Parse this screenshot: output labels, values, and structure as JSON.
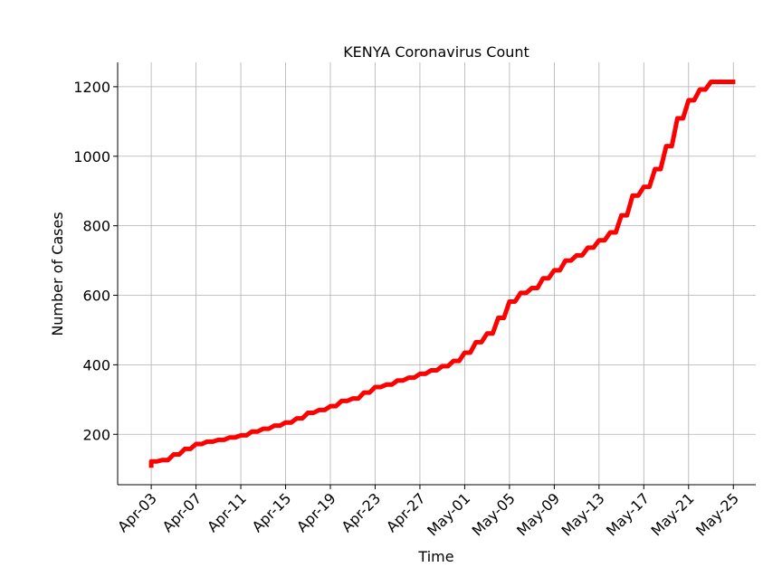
{
  "chart_data": {
    "type": "line",
    "title": "KENYA Coronavirus Count",
    "xlabel": "Time",
    "ylabel": "Number of Cases",
    "grid": true,
    "step": true,
    "ylim": [
      55,
      1270
    ],
    "xlim": [
      "2020-03-31",
      "2020-05-27"
    ],
    "x_tick_labels": [
      "Apr-03",
      "Apr-07",
      "Apr-11",
      "Apr-15",
      "Apr-19",
      "Apr-23",
      "Apr-27",
      "May-01",
      "May-05",
      "May-09",
      "May-13",
      "May-17",
      "May-21",
      "May-25"
    ],
    "x_tick_dates": [
      "2020-04-03",
      "2020-04-07",
      "2020-04-11",
      "2020-04-15",
      "2020-04-19",
      "2020-04-23",
      "2020-04-27",
      "2020-05-01",
      "2020-05-05",
      "2020-05-09",
      "2020-05-13",
      "2020-05-17",
      "2020-05-21",
      "2020-05-25"
    ],
    "y_ticks": [
      200,
      400,
      600,
      800,
      1000,
      1200
    ],
    "series": [
      {
        "color": "#ff0000",
        "x": [
          "2020-04-03",
          "2020-04-04",
          "2020-04-05",
          "2020-04-06",
          "2020-04-07",
          "2020-04-08",
          "2020-04-09",
          "2020-04-10",
          "2020-04-11",
          "2020-04-12",
          "2020-04-13",
          "2020-04-14",
          "2020-04-15",
          "2020-04-16",
          "2020-04-17",
          "2020-04-18",
          "2020-04-19",
          "2020-04-20",
          "2020-04-21",
          "2020-04-22",
          "2020-04-23",
          "2020-04-24",
          "2020-04-25",
          "2020-04-26",
          "2020-04-27",
          "2020-04-28",
          "2020-04-29",
          "2020-04-30",
          "2020-05-01",
          "2020-05-02",
          "2020-05-03",
          "2020-05-04",
          "2020-05-05",
          "2020-05-06",
          "2020-05-07",
          "2020-05-08",
          "2020-05-09",
          "2020-05-10",
          "2020-05-11",
          "2020-05-12",
          "2020-05-13",
          "2020-05-14",
          "2020-05-15",
          "2020-05-16",
          "2020-05-17",
          "2020-05-18",
          "2020-05-19",
          "2020-05-20",
          "2020-05-21",
          "2020-05-22",
          "2020-05-23",
          "2020-05-24",
          "2020-05-25"
        ],
        "values": [
          122,
          126,
          142,
          158,
          172,
          179,
          184,
          191,
          197,
          208,
          216,
          225,
          234,
          246,
          262,
          270,
          281,
          296,
          303,
          320,
          336,
          343,
          355,
          363,
          374,
          384,
          396,
          411,
          435,
          465,
          490,
          535,
          582,
          607,
          621,
          649,
          672,
          700,
          715,
          737,
          758,
          781,
          830,
          887,
          912,
          963,
          1029,
          1109,
          1161,
          1192,
          1214,
          1214,
          1214
        ]
      }
    ]
  }
}
